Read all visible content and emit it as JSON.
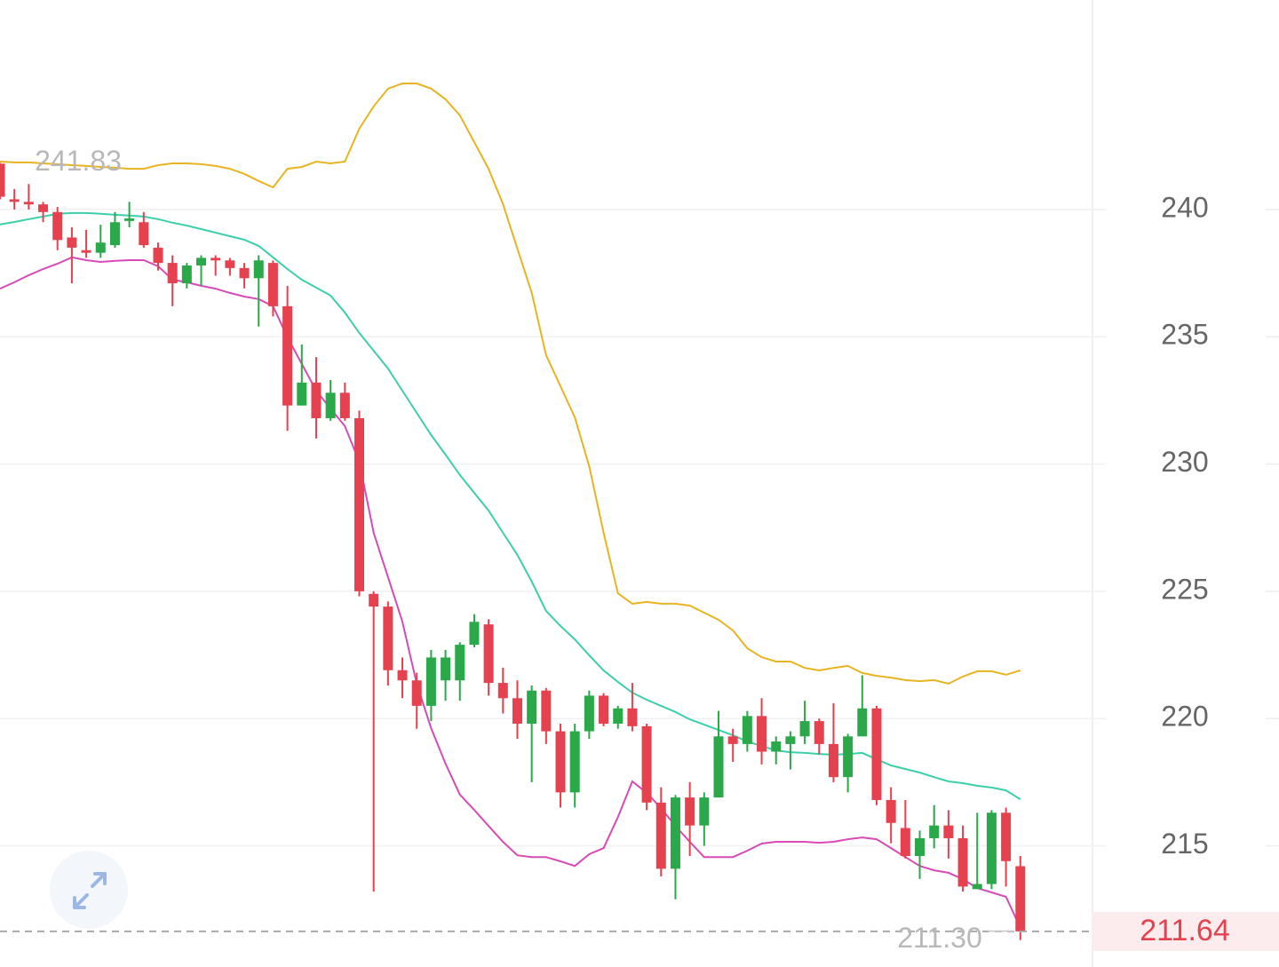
{
  "chart_data": {
    "type": "candlestick",
    "ylim": [
      210.24,
      248.23
    ],
    "yticks": [
      215,
      220,
      225,
      230,
      235,
      240
    ],
    "grid": true,
    "up_color": "#2aa84a",
    "down_color": "#e5414f",
    "series": {
      "open": [
        241.8,
        240.4,
        240.3,
        240.2,
        239.9,
        238.9,
        238.4,
        238.3,
        238.6,
        239.55,
        239.5,
        238.5,
        237.9,
        237.1,
        237.8,
        238.1,
        238.0,
        237.7,
        237.3,
        237.9,
        236.2,
        232.3,
        233.2,
        231.8,
        232.8,
        231.8,
        224.9,
        224.4,
        221.9,
        221.5,
        220.5,
        221.5,
        221.5,
        222.9,
        223.7,
        221.4,
        220.8,
        219.8,
        221.1,
        219.5,
        217.1,
        219.5,
        220.9,
        219.8,
        220.4,
        219.7,
        216.7,
        214.1,
        216.9,
        215.8,
        216.9,
        219.3,
        219.0,
        220.1,
        218.7,
        219.0,
        219.3,
        219.9,
        219.0,
        217.7,
        219.3,
        220.4,
        216.8,
        215.7,
        214.6,
        215.3,
        215.8,
        215.3,
        213.3,
        213.5,
        216.3,
        214.2
      ],
      "high": [
        241.83,
        240.8,
        241.0,
        240.3,
        240.1,
        239.3,
        239.2,
        239.4,
        239.9,
        240.3,
        239.9,
        238.7,
        238.2,
        237.9,
        238.2,
        238.2,
        238.1,
        237.9,
        238.2,
        238.0,
        237.0,
        234.7,
        234.2,
        233.3,
        233.2,
        232.1,
        225.0,
        224.6,
        222.4,
        221.8,
        222.7,
        222.7,
        223.0,
        224.1,
        223.9,
        222.0,
        221.5,
        221.3,
        221.2,
        219.8,
        219.8,
        221.1,
        221.0,
        220.5,
        221.4,
        219.8,
        217.3,
        217.0,
        217.5,
        217.1,
        220.3,
        219.6,
        220.3,
        220.8,
        219.3,
        219.5,
        220.7,
        220.0,
        220.6,
        219.4,
        221.7,
        220.5,
        217.3,
        216.8,
        215.6,
        216.6,
        216.4,
        215.8,
        216.3,
        216.4,
        216.5,
        214.6
      ],
      "low": [
        240.4,
        240.0,
        240.0,
        239.5,
        238.4,
        237.1,
        238.1,
        238.1,
        238.5,
        239.3,
        238.5,
        237.6,
        236.2,
        236.9,
        237.0,
        237.4,
        237.4,
        236.9,
        235.4,
        235.8,
        231.3,
        232.3,
        231.0,
        231.7,
        231.7,
        224.8,
        213.2,
        221.3,
        220.8,
        219.6,
        219.9,
        220.7,
        220.7,
        222.8,
        220.9,
        220.2,
        219.2,
        217.5,
        219.0,
        216.5,
        216.5,
        219.2,
        219.7,
        219.6,
        219.5,
        216.4,
        213.8,
        212.9,
        214.6,
        215.0,
        216.9,
        218.3,
        218.7,
        218.2,
        218.2,
        218.0,
        219.0,
        218.6,
        217.5,
        217.1,
        219.3,
        216.6,
        215.1,
        214.5,
        213.7,
        214.9,
        214.5,
        213.2,
        213.3,
        213.3,
        213.4,
        211.3
      ],
      "close": [
        240.5,
        240.3,
        240.2,
        239.9,
        238.8,
        238.5,
        238.3,
        238.7,
        239.5,
        239.65,
        238.6,
        237.9,
        237.1,
        237.8,
        238.1,
        238.0,
        237.7,
        237.3,
        238.0,
        236.2,
        232.3,
        233.2,
        231.8,
        232.8,
        231.8,
        225.0,
        224.4,
        221.9,
        221.5,
        220.5,
        222.4,
        222.4,
        222.9,
        223.8,
        221.4,
        220.8,
        219.8,
        221.1,
        219.5,
        217.1,
        219.5,
        220.9,
        219.8,
        220.4,
        219.7,
        216.7,
        214.1,
        216.9,
        215.8,
        216.9,
        219.3,
        219.0,
        220.1,
        218.7,
        219.1,
        219.3,
        219.9,
        219.0,
        217.7,
        219.3,
        220.4,
        216.8,
        215.9,
        214.6,
        215.3,
        215.8,
        215.3,
        213.4,
        213.5,
        216.3,
        214.4,
        211.64
      ]
    },
    "bands": {
      "upper": {
        "color": "#e8b422",
        "values": [
          241.88,
          241.85,
          241.85,
          241.81,
          241.78,
          241.74,
          241.71,
          241.67,
          241.64,
          241.6,
          241.6,
          241.74,
          241.81,
          241.81,
          241.78,
          241.71,
          241.6,
          241.4,
          241.12,
          240.87,
          241.6,
          241.67,
          241.88,
          241.81,
          241.88,
          243.17,
          244.05,
          244.75,
          244.95,
          244.95,
          244.75,
          244.33,
          243.7,
          242.65,
          241.6,
          240.21,
          238.46,
          236.72,
          234.28,
          233.06,
          231.83,
          229.91,
          227.3,
          224.92,
          224.51,
          224.58,
          224.51,
          224.51,
          224.44,
          224.16,
          223.88,
          223.46,
          222.76,
          222.41,
          222.24,
          222.24,
          221.99,
          221.89,
          221.99,
          222.07,
          221.79,
          221.68,
          221.61,
          221.51,
          221.47,
          221.51,
          221.37,
          221.65,
          221.86,
          221.86,
          221.72,
          221.89
        ]
      },
      "middle": {
        "color": "#3ccfaa",
        "values": [
          239.41,
          239.51,
          239.62,
          239.72,
          239.83,
          239.86,
          239.86,
          239.83,
          239.79,
          239.76,
          239.72,
          239.62,
          239.48,
          239.37,
          239.23,
          239.09,
          238.95,
          238.81,
          238.57,
          238.12,
          237.66,
          237.24,
          236.93,
          236.62,
          235.95,
          235.15,
          234.45,
          233.75,
          232.88,
          232.01,
          231.14,
          230.37,
          229.57,
          228.87,
          228.17,
          227.3,
          226.43,
          225.38,
          224.23,
          223.64,
          223.11,
          222.48,
          221.89,
          221.44,
          221.02,
          220.74,
          220.5,
          220.26,
          219.97,
          219.76,
          219.55,
          219.34,
          219.1,
          218.92,
          218.75,
          218.68,
          218.65,
          218.61,
          218.58,
          218.61,
          218.65,
          218.4,
          218.16,
          218.02,
          217.88,
          217.7,
          217.53,
          217.46,
          217.36,
          217.29,
          217.18,
          216.83
        ]
      },
      "lower": {
        "color": "#d84bb6",
        "values": [
          236.89,
          237.14,
          237.42,
          237.66,
          237.87,
          238.12,
          238.01,
          237.94,
          237.98,
          238.01,
          238.01,
          237.77,
          237.24,
          237.14,
          237.0,
          236.89,
          236.72,
          236.58,
          236.48,
          236.2,
          234.98,
          233.93,
          232.88,
          232.18,
          231.49,
          230.09,
          227.3,
          225.55,
          223.81,
          221.37,
          219.62,
          218.23,
          217.01,
          216.41,
          215.78,
          215.16,
          214.63,
          214.56,
          214.56,
          214.39,
          214.21,
          214.67,
          214.91,
          216.13,
          217.53,
          217.08,
          216.48,
          215.78,
          215.16,
          214.56,
          214.56,
          214.56,
          214.81,
          215.09,
          215.16,
          215.16,
          215.16,
          215.12,
          215.16,
          215.26,
          215.33,
          215.26,
          214.91,
          214.56,
          214.21,
          214.04,
          213.94,
          213.69,
          213.34,
          213.17,
          213.0,
          211.77
        ]
      }
    },
    "max_marker": {
      "value": 241.83,
      "label": "241.83"
    },
    "min_marker": {
      "value": 211.3,
      "label": "211.30"
    },
    "last_price": 211.64
  }
}
